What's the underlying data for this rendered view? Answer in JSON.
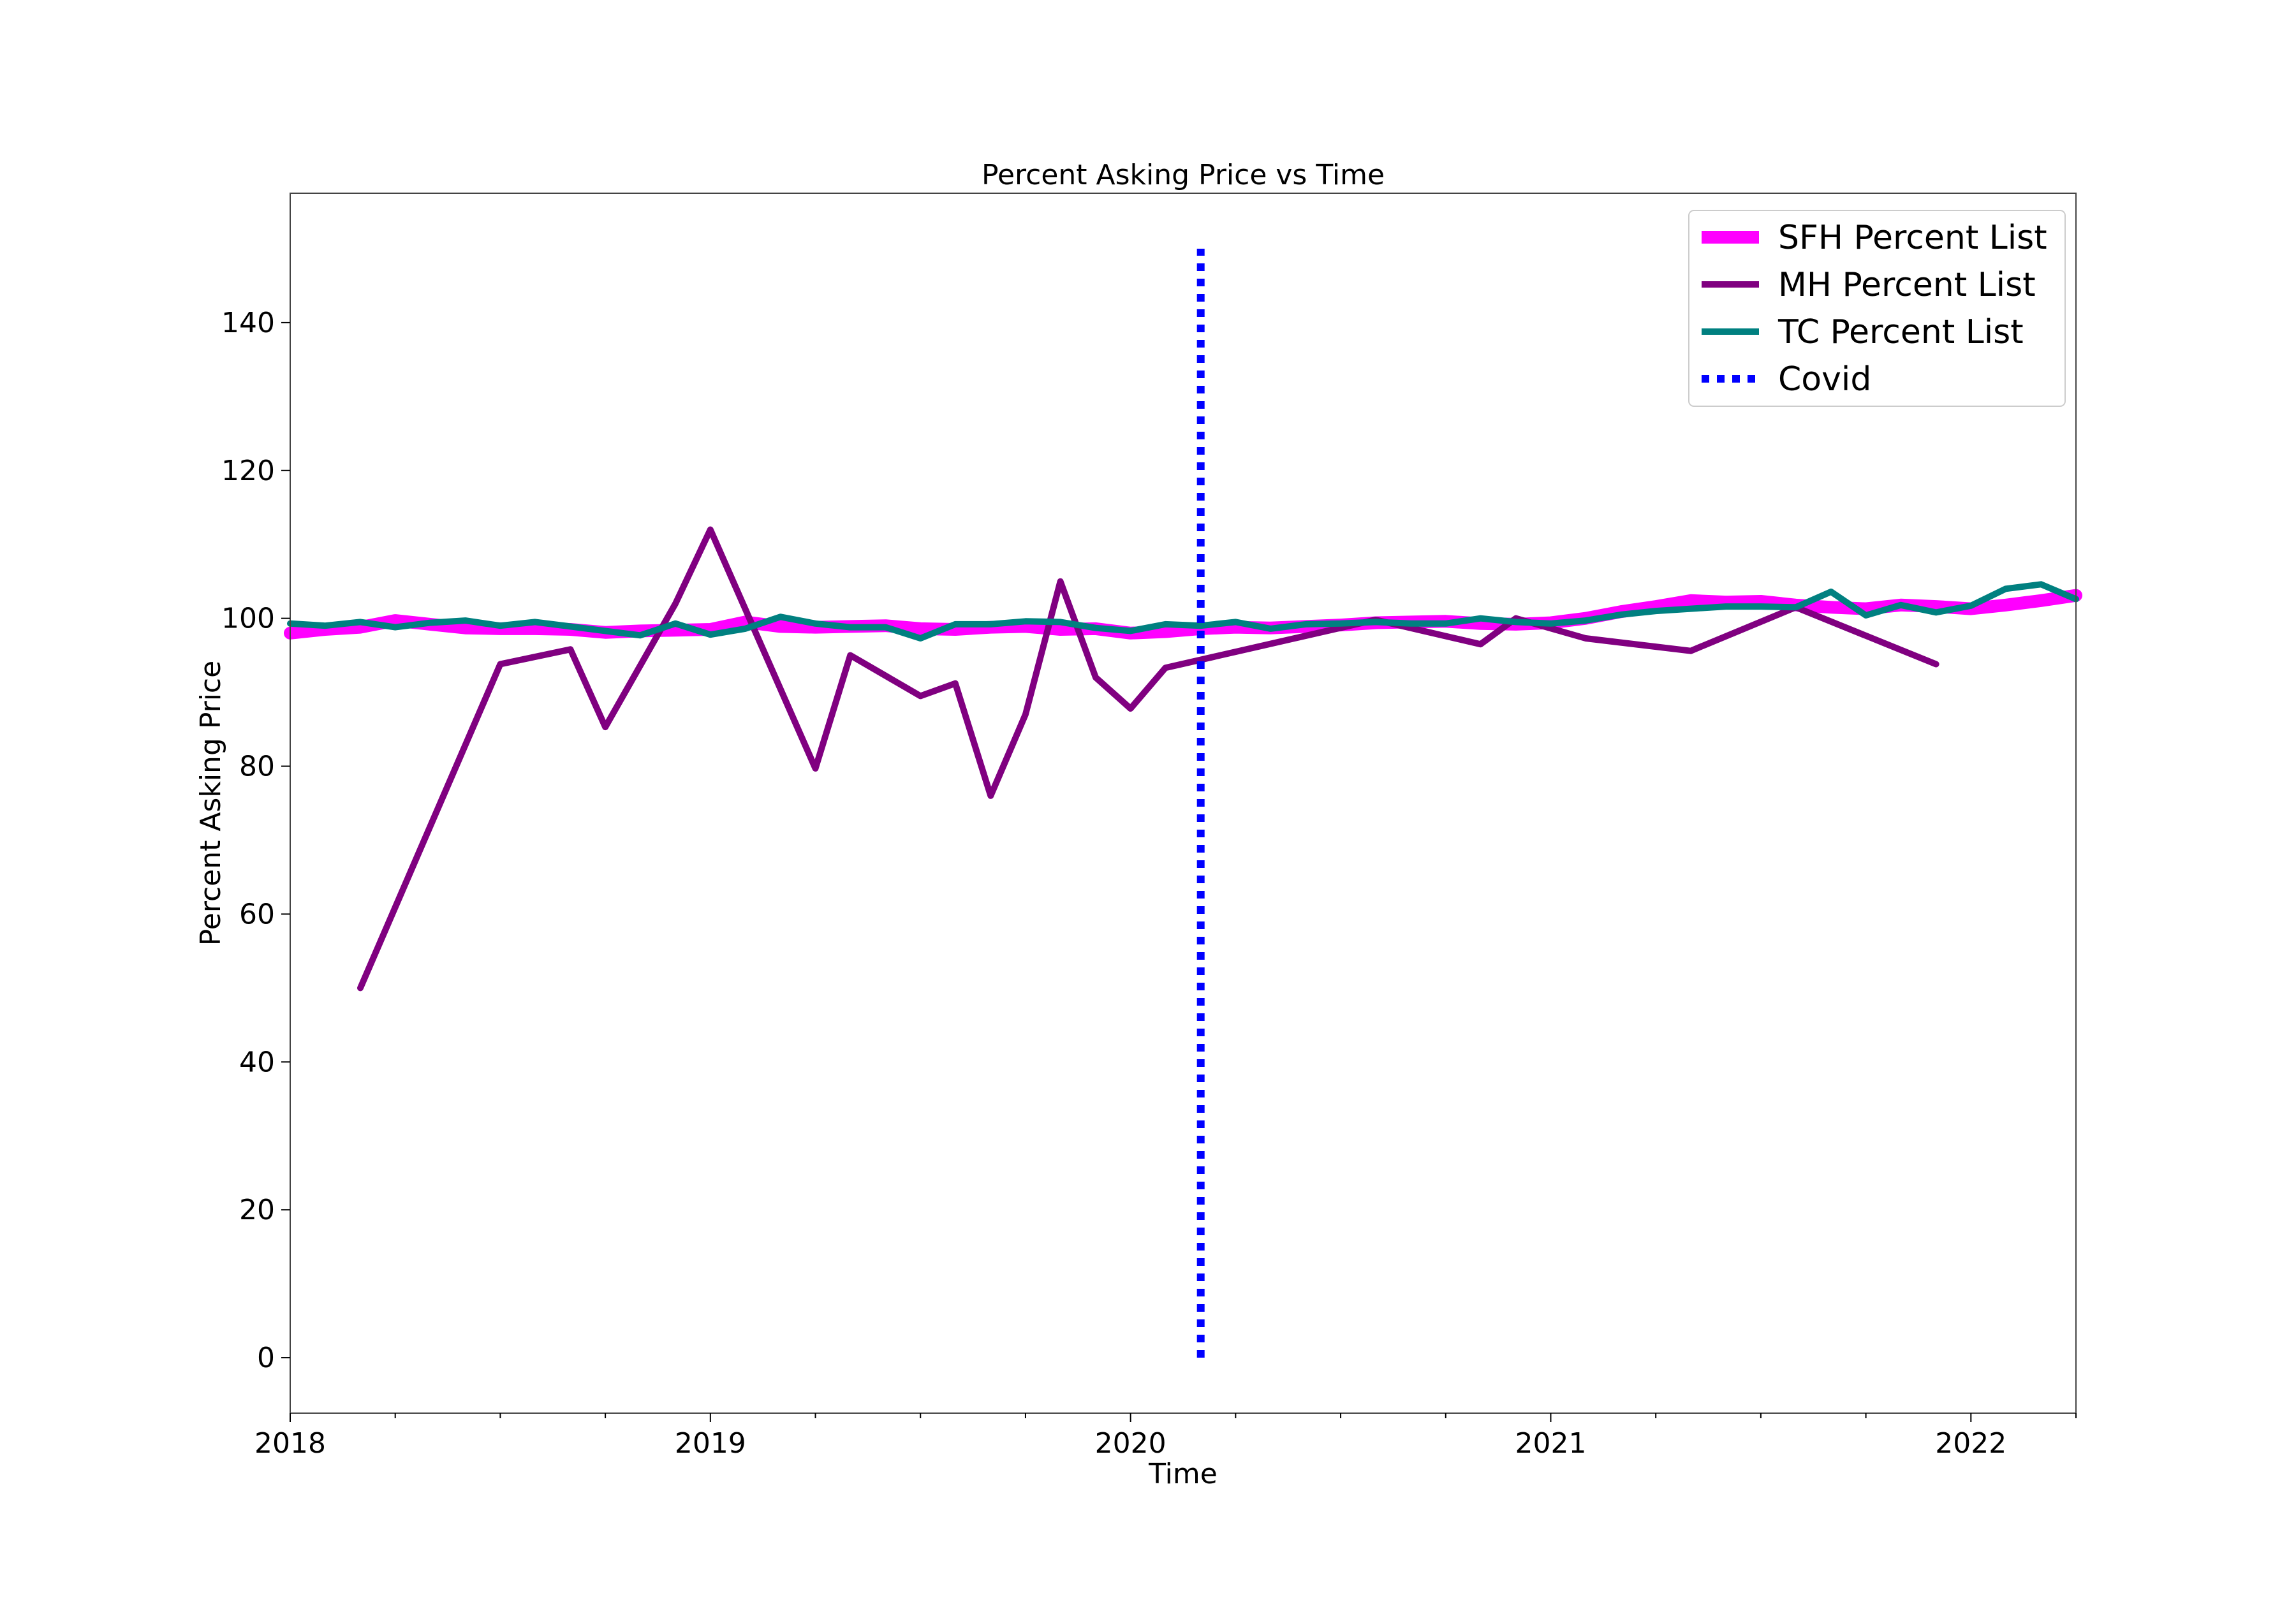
{
  "chart_data": {
    "type": "line",
    "title": "Percent Asking Price vs Time",
    "xlabel": "Time",
    "ylabel": "Percent Asking Price",
    "xlim": [
      2018.0,
      2022.25
    ],
    "ylim": [
      -7.5,
      157.5
    ],
    "x_ticks": [
      2018,
      2019,
      2020,
      2021,
      2022
    ],
    "x_tick_labels": [
      "2018",
      "2019",
      "2020",
      "2021",
      "2022"
    ],
    "y_ticks": [
      0,
      20,
      40,
      60,
      80,
      100,
      120,
      140
    ],
    "y_tick_labels": [
      "0",
      "20",
      "40",
      "60",
      "80",
      "100",
      "120",
      "140"
    ],
    "grid": false,
    "legend_position": "top-right",
    "series": [
      {
        "name": "SFH Percent List",
        "color": "#ff00ff",
        "style": "solid",
        "x": [
          2018.0,
          2018.083,
          2018.167,
          2018.25,
          2018.333,
          2018.417,
          2018.5,
          2018.583,
          2018.667,
          2018.75,
          2018.833,
          2018.917,
          2019.0,
          2019.083,
          2019.167,
          2019.25,
          2019.333,
          2019.417,
          2019.5,
          2019.583,
          2019.667,
          2019.75,
          2019.833,
          2019.917,
          2020.0,
          2020.083,
          2020.167,
          2020.25,
          2020.333,
          2020.417,
          2020.5,
          2020.583,
          2020.667,
          2020.75,
          2020.833,
          2020.917,
          2021.0,
          2021.083,
          2021.167,
          2021.25,
          2021.333,
          2021.417,
          2021.5,
          2021.583,
          2021.667,
          2021.75,
          2021.833,
          2021.917,
          2022.0,
          2022.083,
          2022.167,
          2022.25
        ],
        "y": [
          98.0,
          98.5,
          98.8,
          99.7,
          99.2,
          98.7,
          98.6,
          98.6,
          98.5,
          98.1,
          98.3,
          98.4,
          98.5,
          99.5,
          98.9,
          98.8,
          98.9,
          99.0,
          98.6,
          98.5,
          98.8,
          98.9,
          98.5,
          98.6,
          98.0,
          98.2,
          98.6,
          98.8,
          98.7,
          98.9,
          99.1,
          99.4,
          99.5,
          99.6,
          99.3,
          99.2,
          99.4,
          100.0,
          100.9,
          101.6,
          102.4,
          102.2,
          102.3,
          101.8,
          101.5,
          101.3,
          101.8,
          101.6,
          101.3,
          101.8,
          102.4,
          103.1
        ]
      },
      {
        "name": "MH Percent List",
        "color": "#800080",
        "style": "solid",
        "x": [
          2018.167,
          2018.5,
          2018.667,
          2018.75,
          2018.917,
          2019.0,
          2019.25,
          2019.333,
          2019.5,
          2019.583,
          2019.667,
          2019.75,
          2019.833,
          2019.917,
          2020.0,
          2020.083,
          2020.583,
          2020.833,
          2020.917,
          2021.083,
          2021.333,
          2021.583,
          2021.917
        ],
        "y": [
          50.0,
          93.8,
          95.8,
          85.3,
          102.0,
          112.0,
          79.7,
          95.0,
          89.5,
          91.2,
          76.0,
          87.0,
          105.0,
          92.0,
          87.8,
          93.3,
          99.8,
          96.5,
          100.0,
          97.3,
          95.6,
          101.5,
          93.8
        ]
      },
      {
        "name": "TC Percent List",
        "color": "#008080",
        "style": "solid",
        "x": [
          2018.0,
          2018.083,
          2018.167,
          2018.25,
          2018.333,
          2018.417,
          2018.5,
          2018.583,
          2018.667,
          2018.75,
          2018.833,
          2018.917,
          2019.0,
          2019.083,
          2019.167,
          2019.25,
          2019.333,
          2019.417,
          2019.5,
          2019.583,
          2019.667,
          2019.75,
          2019.833,
          2019.917,
          2020.0,
          2020.083,
          2020.167,
          2020.25,
          2020.333,
          2020.417,
          2020.5,
          2020.583,
          2020.667,
          2020.75,
          2020.833,
          2020.917,
          2021.0,
          2021.083,
          2021.167,
          2021.25,
          2021.333,
          2021.417,
          2021.5,
          2021.583,
          2021.667,
          2021.75,
          2021.833,
          2021.917,
          2022.0,
          2022.083,
          2022.167,
          2022.25
        ],
        "y": [
          99.3,
          99.0,
          99.5,
          98.8,
          99.4,
          99.7,
          99.0,
          99.5,
          98.9,
          98.3,
          97.7,
          99.3,
          97.8,
          98.6,
          100.2,
          99.3,
          98.8,
          98.8,
          97.3,
          99.2,
          99.2,
          99.6,
          99.5,
          98.7,
          98.3,
          99.2,
          99.0,
          99.5,
          98.6,
          99.2,
          99.3,
          99.5,
          99.3,
          99.3,
          100.0,
          99.5,
          99.3,
          99.7,
          100.5,
          101.0,
          101.3,
          101.6,
          101.6,
          101.5,
          103.6,
          100.4,
          101.8,
          100.8,
          101.7,
          104.0,
          104.6,
          102.6
        ]
      },
      {
        "name": "Covid",
        "color": "#0000ff",
        "style": "dotted",
        "x": [
          2020.167,
          2020.167
        ],
        "y": [
          0,
          150
        ]
      }
    ]
  }
}
